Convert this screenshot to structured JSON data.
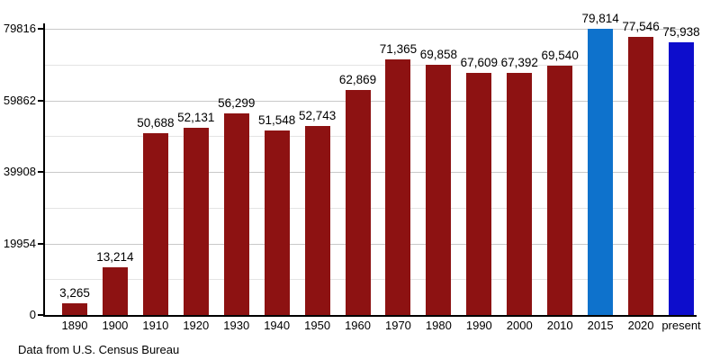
{
  "chart_data": {
    "type": "bar",
    "title": "",
    "xlabel": "",
    "ylabel": "",
    "categories": [
      "1890",
      "1900",
      "1910",
      "1920",
      "1930",
      "1940",
      "1950",
      "1960",
      "1970",
      "1980",
      "1990",
      "2000",
      "2010",
      "2015",
      "2020",
      "present"
    ],
    "values": [
      3265,
      13214,
      50688,
      52131,
      56299,
      51548,
      52743,
      62869,
      71365,
      69858,
      67609,
      67392,
      69540,
      79814,
      77546,
      75938
    ],
    "data_labels": [
      "3,265",
      "13,214",
      "50,688",
      "52,131",
      "56,299",
      "51,548",
      "52,743",
      "62,869",
      "71,365",
      "69,858",
      "67,609",
      "67,392",
      "69,540",
      "79,814",
      "77,546",
      "75,938"
    ],
    "bar_colors": [
      "#8D1212",
      "#8D1212",
      "#8D1212",
      "#8D1212",
      "#8D1212",
      "#8D1212",
      "#8D1212",
      "#8D1212",
      "#8D1212",
      "#8D1212",
      "#8D1212",
      "#8D1212",
      "#8D1212",
      "#0E72CC",
      "#8D1212",
      "#0D0DCC"
    ],
    "colors": {
      "default_bar": "#8D1212",
      "highlight_2015": "#0E72CC",
      "highlight_present": "#0D0DCC",
      "axis": "#000000",
      "major_grid": "#c9c9c9",
      "minor_grid": "#e4e4e4",
      "text": "#000000",
      "background": "#ffffff"
    },
    "ylim": [
      0,
      79816
    ],
    "ytick_values": [
      0,
      19954,
      39908,
      59862,
      79816
    ],
    "ytick_labels": [
      "0",
      "19954",
      "39908",
      "59862",
      "79816"
    ],
    "minor_gridline_values": [
      9977,
      29931,
      49885,
      69839
    ],
    "grid": "horizontal major+minor",
    "legend": "none",
    "footnote": "Data from U.S. Census Bureau"
  }
}
